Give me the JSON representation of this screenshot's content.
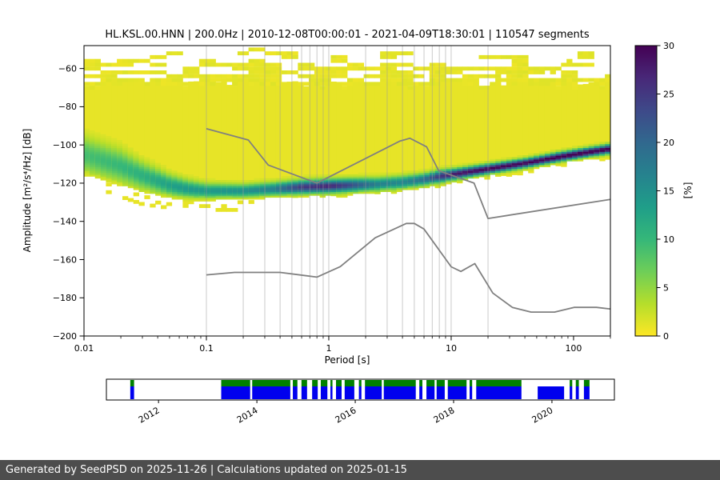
{
  "footer": {
    "text": "Generated by SeedPSD on 2025-11-26 | Calculations updated on 2025-01-15",
    "bg": "#4d4d4d",
    "fg": "#ffffff"
  },
  "chart_data": [
    {
      "type": "heatmap",
      "title": "HL.KSL.00.HNN | 200.0Hz | 2010-12-08T00:00:01 - 2021-04-09T18:30:01 | 110547 segments",
      "xlabel": "Period [s]",
      "ylabel": "Amplitude [m²/s⁴/Hz] [dB]",
      "xscale": "log",
      "xlim": [
        0.01,
        200
      ],
      "ylim": [
        -200,
        -48
      ],
      "xticks": [
        0.01,
        0.1,
        1,
        10,
        100
      ],
      "yticks": [
        -200,
        -180,
        -160,
        -140,
        -120,
        -100,
        -80,
        -60
      ],
      "grid_on": true,
      "grid_periods": [
        0.1,
        0.2,
        0.3,
        0.4,
        0.5,
        0.6,
        0.7,
        0.8,
        0.9,
        1,
        2,
        3,
        4,
        5,
        6,
        7,
        8,
        9,
        10,
        20
      ],
      "grid_color": "#9a9a9a",
      "colorbar": {
        "label": "[%]",
        "min": 0,
        "max": 30,
        "ticks": [
          0,
          5,
          10,
          15,
          20,
          25,
          30
        ],
        "colormap_reversed_viridis": [
          "#440154",
          "#482878",
          "#3e4989",
          "#31688e",
          "#26828e",
          "#1f9e89",
          "#35b779",
          "#6ece58",
          "#b5de2b",
          "#fde725"
        ]
      },
      "psd_distribution": {
        "background_top_db": -68,
        "background_percent": 1.0,
        "speckle_top_db": -49,
        "control_periods": [
          0.01,
          0.02,
          0.03,
          0.05,
          0.07,
          0.1,
          0.2,
          0.35,
          0.6,
          1,
          1.5,
          2.5,
          4,
          6,
          8,
          10,
          20,
          40,
          80,
          140,
          200
        ],
        "mode_db": [
          -105,
          -111,
          -116,
          -121,
          -123,
          -124,
          -124,
          -123,
          -122,
          -121.5,
          -121,
          -120.5,
          -119.5,
          -118,
          -116.5,
          -115.5,
          -112.5,
          -109.5,
          -106,
          -103.5,
          -102
        ],
        "sigma_db": [
          6,
          5.5,
          4.5,
          3.5,
          3,
          2.5,
          2.2,
          2.2,
          2.2,
          2.2,
          2.2,
          2.2,
          2.2,
          2,
          2,
          1.8,
          1.6,
          1.5,
          1.5,
          1.5,
          1.5
        ],
        "peak_percent": [
          8,
          9,
          10,
          12,
          13,
          13,
          14,
          16,
          24,
          26,
          22,
          16,
          15,
          18,
          24,
          27,
          29,
          29,
          30,
          30,
          30
        ],
        "bottom_db": [
          -113,
          -120,
          -124,
          -126,
          -127,
          -127,
          -127,
          -126.5,
          -126,
          -125.5,
          -125,
          -124,
          -123,
          -121.5,
          -120.5,
          -119.5,
          -116.5,
          -113.5,
          -110,
          -107.5,
          -106
        ]
      },
      "noise_models": {
        "color": "#808080",
        "nhnm": {
          "periods": [
            0.1,
            0.22,
            0.32,
            0.8,
            3.8,
            4.6,
            6.3,
            7.9,
            15.4,
            20.0,
            354.8
          ],
          "db": [
            -91.5,
            -97.4,
            -110.5,
            -120.0,
            -98.0,
            -96.5,
            -101.0,
            -113.5,
            -120.0,
            -138.5,
            -126.0
          ]
        },
        "nlnm": {
          "periods": [
            0.1,
            0.17,
            0.4,
            0.8,
            1.24,
            2.4,
            4.3,
            5.0,
            6.0,
            10.0,
            12.0,
            15.6,
            21.9,
            31.6,
            45.0,
            70.0,
            101.0,
            154.0,
            328.0
          ],
          "db": [
            -168.0,
            -166.7,
            -166.7,
            -169.2,
            -163.7,
            -148.6,
            -141.1,
            -141.1,
            -144.0,
            -163.8,
            -166.2,
            -162.1,
            -177.5,
            -185.0,
            -187.5,
            -187.5,
            -185.0,
            -185.0,
            -187.5
          ]
        }
      }
    },
    {
      "type": "availability-timeline",
      "axis_start_year": 2010.94,
      "axis_end_year": 2021.27,
      "tick_years": [
        2012,
        2014,
        2016,
        2018,
        2020
      ],
      "colors": {
        "blue": "#0000ee",
        "green": "#008000",
        "outline": "#000000"
      },
      "segments": [
        {
          "start": 0.047,
          "end": 0.0545,
          "green": true
        },
        {
          "start": 0.226,
          "end": 0.283,
          "green": true
        },
        {
          "start": 0.287,
          "end": 0.362,
          "green": true
        },
        {
          "start": 0.367,
          "end": 0.376,
          "green": true
        },
        {
          "start": 0.384,
          "end": 0.395,
          "green": true
        },
        {
          "start": 0.405,
          "end": 0.416,
          "green": true
        },
        {
          "start": 0.422,
          "end": 0.435,
          "green": true
        },
        {
          "start": 0.441,
          "end": 0.445,
          "green": true
        },
        {
          "start": 0.452,
          "end": 0.463,
          "green": true
        },
        {
          "start": 0.469,
          "end": 0.488,
          "green": true
        },
        {
          "start": 0.497,
          "end": 0.502,
          "green": true
        },
        {
          "start": 0.509,
          "end": 0.542,
          "green": true
        },
        {
          "start": 0.546,
          "end": 0.609,
          "green": true
        },
        {
          "start": 0.616,
          "end": 0.622,
          "green": true
        },
        {
          "start": 0.63,
          "end": 0.646,
          "green": true
        },
        {
          "start": 0.65,
          "end": 0.666,
          "green": true
        },
        {
          "start": 0.672,
          "end": 0.709,
          "green": true
        },
        {
          "start": 0.715,
          "end": 0.72,
          "green": true
        },
        {
          "start": 0.728,
          "end": 0.817,
          "green": true
        },
        {
          "start": 0.849,
          "end": 0.901,
          "green": false
        },
        {
          "start": 0.912,
          "end": 0.917,
          "green": true
        },
        {
          "start": 0.924,
          "end": 0.93,
          "green": true
        },
        {
          "start": 0.94,
          "end": 0.951,
          "green": true
        }
      ]
    }
  ]
}
